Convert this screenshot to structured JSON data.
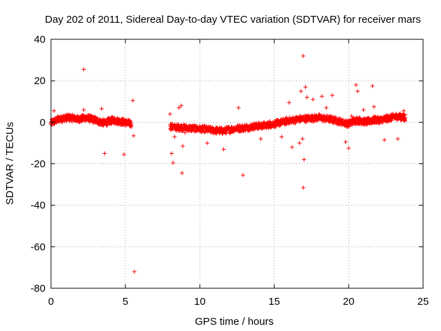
{
  "chart_data": {
    "type": "scatter",
    "title": "Day 202 of 2011, Sidereal Day-to-day VTEC variation (SDTVAR) for receiver mars",
    "xlabel": "GPS time / hours",
    "ylabel": "SDTVAR / TECUs",
    "xlim": [
      0,
      25
    ],
    "ylim": [
      -80,
      40
    ],
    "xticks": [
      0,
      5,
      10,
      15,
      20,
      25
    ],
    "yticks": [
      -80,
      -60,
      -40,
      -20,
      0,
      20,
      40
    ],
    "grid": true,
    "marker": "+",
    "color": "#ff0000",
    "series": [
      {
        "name": "SDTVAR",
        "segments": [
          {
            "x": [
              0.0,
              0.3,
              0.6,
              0.9,
              1.2,
              1.5,
              1.8,
              2.1,
              2.4,
              2.7,
              3.0,
              3.3,
              3.6,
              3.9,
              4.2,
              4.5,
              4.8,
              5.1,
              5.4
            ],
            "y": [
              -0.5,
              0.8,
              1.6,
              2.0,
              2.2,
              2.0,
              1.5,
              1.8,
              2.2,
              1.6,
              1.0,
              0.2,
              -0.4,
              0.5,
              1.0,
              0.6,
              0.2,
              -0.2,
              -0.8
            ]
          },
          {
            "x": [
              8.0,
              8.4,
              8.8,
              9.2,
              9.6,
              10.0,
              10.4,
              10.8,
              11.2,
              11.6,
              12.0,
              12.4,
              12.8,
              13.2,
              13.6,
              14.0,
              14.4,
              14.8,
              15.2,
              15.6,
              16.0,
              16.4,
              16.8,
              17.2,
              17.6,
              18.0,
              18.4,
              18.8,
              19.2,
              19.6,
              20.0,
              20.3,
              20.6,
              20.9,
              21.2,
              21.5,
              21.8,
              22.1,
              22.4,
              22.7,
              23.0,
              23.3,
              23.6,
              23.8
            ],
            "y": [
              -2.0,
              -2.5,
              -2.5,
              -2.8,
              -3.0,
              -3.2,
              -3.4,
              -3.8,
              -4.0,
              -4.2,
              -3.5,
              -3.0,
              -2.8,
              -2.5,
              -2.0,
              -1.8,
              -1.5,
              -1.0,
              -0.5,
              0.2,
              0.8,
              1.2,
              1.6,
              1.8,
              2.0,
              2.2,
              1.8,
              1.4,
              0.8,
              0.0,
              -0.8,
              0.5,
              1.0,
              0.5,
              0.2,
              0.8,
              1.2,
              1.0,
              1.5,
              2.0,
              2.5,
              2.8,
              2.5,
              2.2
            ]
          }
        ],
        "outliers": {
          "x": [
            0.2,
            2.2,
            2.2,
            3.4,
            3.6,
            4.9,
            5.5,
            5.55,
            5.6,
            8.0,
            8.1,
            8.2,
            8.3,
            8.6,
            8.75,
            8.8,
            8.85,
            9.0,
            10.5,
            11.6,
            12.6,
            12.9,
            14.1,
            14.7,
            15.5,
            16.0,
            16.2,
            16.7,
            16.8,
            16.9,
            16.95,
            16.95,
            17.0,
            17.1,
            17.2,
            17.6,
            18.2,
            18.5,
            18.9,
            19.8,
            20.0,
            20.2,
            20.5,
            20.6,
            21.0,
            21.6,
            21.7,
            22.4,
            23.3,
            23.7
          ],
          "y": [
            5.5,
            25.5,
            6.0,
            6.5,
            -15.0,
            -15.5,
            10.5,
            -6.5,
            -72.0,
            4.0,
            -15.0,
            -19.5,
            -7.0,
            7.0,
            8.0,
            -24.5,
            -11.5,
            -5.0,
            -10.0,
            -13.0,
            7.0,
            -25.5,
            -8.0,
            0.5,
            -7.0,
            9.5,
            -12.0,
            -10.0,
            15.0,
            -8.0,
            32.0,
            -31.5,
            -18.0,
            17.0,
            12.0,
            11.0,
            12.5,
            7.0,
            13.0,
            -9.5,
            -12.5,
            3.0,
            18.0,
            15.0,
            6.0,
            17.5,
            7.5,
            -8.5,
            -8.0,
            5.5
          ]
        }
      }
    ]
  }
}
